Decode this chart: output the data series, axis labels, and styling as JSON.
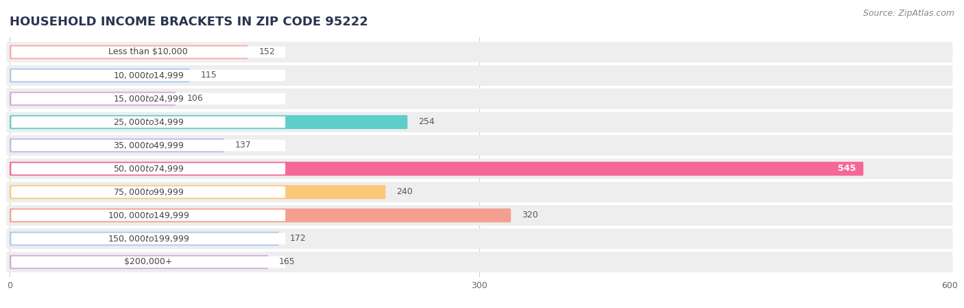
{
  "title": "HOUSEHOLD INCOME BRACKETS IN ZIP CODE 95222",
  "source": "Source: ZipAtlas.com",
  "categories": [
    "Less than $10,000",
    "$10,000 to $14,999",
    "$15,000 to $24,999",
    "$25,000 to $34,999",
    "$35,000 to $49,999",
    "$50,000 to $74,999",
    "$75,000 to $99,999",
    "$100,000 to $149,999",
    "$150,000 to $199,999",
    "$200,000+"
  ],
  "values": [
    152,
    115,
    106,
    254,
    137,
    545,
    240,
    320,
    172,
    165
  ],
  "bar_colors": [
    "#F4AAAA",
    "#AAC8F2",
    "#D0AADC",
    "#5ECECA",
    "#BCBAEC",
    "#F46898",
    "#FAC87A",
    "#F4A090",
    "#AACAF2",
    "#CCAADC"
  ],
  "background_color": "#ffffff",
  "row_bg_color": "#eeeeee",
  "xlim": [
    0,
    600
  ],
  "xticks": [
    0,
    300,
    600
  ],
  "title_fontsize": 13,
  "label_fontsize": 9,
  "value_fontsize": 9,
  "source_fontsize": 9,
  "title_color": "#2a3550",
  "label_color": "#444444",
  "value_color_dark": "#555555",
  "value_color_light": "#ffffff"
}
